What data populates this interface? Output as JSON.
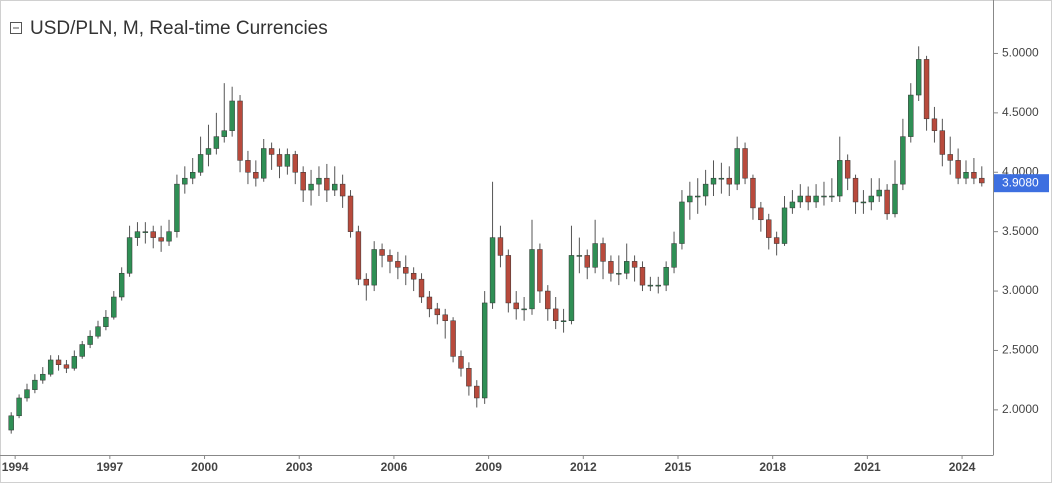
{
  "chart_data": {
    "type": "candlestick",
    "title": "USD/PLN, M, Real-time Currencies",
    "x": [
      1993.75,
      1994,
      1994.25,
      1994.5,
      1994.75,
      1995,
      1995.25,
      1995.5,
      1995.75,
      1996,
      1996.25,
      1996.5,
      1996.75,
      1997,
      1997.25,
      1997.5,
      1997.75,
      1998,
      1998.25,
      1998.5,
      1998.75,
      1999,
      1999.25,
      1999.5,
      1999.75,
      2000,
      2000.25,
      2000.5,
      2000.75,
      2001,
      2001.25,
      2001.5,
      2001.75,
      2002,
      2002.25,
      2002.5,
      2002.75,
      2003,
      2003.25,
      2003.5,
      2003.75,
      2004,
      2004.25,
      2004.5,
      2004.75,
      2005,
      2005.25,
      2005.5,
      2005.75,
      2006,
      2006.25,
      2006.5,
      2006.75,
      2007,
      2007.25,
      2007.5,
      2007.75,
      2008,
      2008.25,
      2008.5,
      2008.75,
      2009,
      2009.25,
      2009.5,
      2009.75,
      2010,
      2010.25,
      2010.5,
      2010.75,
      2011,
      2011.25,
      2011.5,
      2011.75,
      2012,
      2012.25,
      2012.5,
      2012.75,
      2013,
      2013.25,
      2013.5,
      2013.75,
      2014,
      2014.25,
      2014.5,
      2014.75,
      2015,
      2015.25,
      2015.5,
      2015.75,
      2016,
      2016.25,
      2016.5,
      2016.75,
      2017,
      2017.25,
      2017.5,
      2017.75,
      2018,
      2018.25,
      2018.5,
      2018.75,
      2019,
      2019.25,
      2019.5,
      2019.75,
      2020,
      2020.25,
      2020.5,
      2020.75,
      2021,
      2021.25,
      2021.5,
      2021.75,
      2022,
      2022.25,
      2022.5,
      2022.75,
      2023,
      2023.25,
      2023.5,
      2023.75,
      2024,
      2024.25,
      2024.5
    ],
    "open": [
      1.83,
      1.95,
      2.1,
      2.17,
      2.25,
      2.3,
      2.42,
      2.38,
      2.35,
      2.45,
      2.55,
      2.62,
      2.7,
      2.78,
      2.95,
      3.15,
      3.45,
      3.5,
      3.5,
      3.45,
      3.42,
      3.5,
      3.9,
      3.95,
      4.0,
      4.15,
      4.2,
      4.3,
      4.35,
      4.6,
      4.1,
      4.0,
      3.95,
      4.2,
      4.15,
      4.05,
      4.15,
      4.0,
      3.85,
      3.9,
      3.95,
      3.85,
      3.9,
      3.8,
      3.5,
      3.1,
      3.05,
      3.35,
      3.3,
      3.25,
      3.2,
      3.15,
      3.1,
      2.95,
      2.85,
      2.8,
      2.75,
      2.45,
      2.35,
      2.2,
      2.1,
      2.9,
      3.45,
      3.3,
      2.9,
      2.85,
      2.85,
      3.35,
      3.0,
      2.85,
      2.75,
      2.75,
      3.3,
      3.3,
      3.2,
      3.4,
      3.25,
      3.15,
      3.15,
      3.25,
      3.2,
      3.05,
      3.05,
      3.05,
      3.2,
      3.4,
      3.75,
      3.8,
      3.8,
      3.9,
      3.95,
      3.95,
      3.9,
      4.2,
      3.95,
      3.7,
      3.6,
      3.45,
      3.4,
      3.7,
      3.75,
      3.8,
      3.75,
      3.8,
      3.8,
      3.8,
      4.1,
      3.95,
      3.75,
      3.75,
      3.8,
      3.85,
      3.65,
      3.9,
      4.3,
      4.65,
      4.95,
      4.45,
      4.35,
      4.15,
      4.1,
      3.95,
      4.0,
      3.95
    ],
    "high": [
      1.98,
      2.13,
      2.22,
      2.3,
      2.36,
      2.46,
      2.46,
      2.42,
      2.5,
      2.58,
      2.67,
      2.75,
      2.84,
      3.0,
      3.2,
      3.55,
      3.58,
      3.58,
      3.55,
      3.55,
      3.6,
      3.98,
      4.05,
      4.12,
      4.3,
      4.4,
      4.5,
      4.75,
      4.72,
      4.65,
      4.18,
      4.1,
      4.28,
      4.25,
      4.2,
      4.2,
      4.18,
      4.05,
      4.02,
      4.05,
      4.07,
      4.05,
      3.98,
      3.85,
      3.55,
      3.15,
      3.42,
      3.4,
      3.35,
      3.33,
      3.3,
      3.2,
      3.15,
      3.0,
      2.9,
      2.85,
      2.78,
      2.5,
      2.4,
      2.25,
      3.0,
      3.92,
      3.55,
      3.35,
      3.0,
      2.95,
      3.6,
      3.4,
      3.05,
      2.95,
      2.85,
      3.55,
      3.45,
      3.35,
      3.6,
      3.45,
      3.3,
      3.3,
      3.4,
      3.3,
      3.25,
      3.12,
      3.12,
      3.25,
      3.5,
      3.85,
      3.92,
      3.95,
      4.02,
      4.1,
      4.08,
      4.05,
      4.3,
      4.25,
      3.98,
      3.75,
      3.65,
      3.5,
      3.8,
      3.85,
      3.9,
      3.88,
      3.9,
      3.92,
      3.95,
      4.3,
      4.15,
      3.98,
      3.85,
      3.95,
      3.95,
      3.9,
      4.1,
      4.45,
      4.75,
      5.06,
      4.98,
      4.55,
      4.45,
      4.3,
      4.2,
      4.1,
      4.12,
      4.05
    ],
    "low": [
      1.8,
      1.93,
      2.07,
      2.14,
      2.22,
      2.28,
      2.33,
      2.31,
      2.33,
      2.43,
      2.52,
      2.6,
      2.67,
      2.76,
      2.92,
      3.12,
      3.38,
      3.4,
      3.36,
      3.33,
      3.38,
      3.45,
      3.82,
      3.9,
      3.97,
      4.05,
      4.15,
      4.25,
      4.3,
      4.0,
      3.9,
      3.88,
      3.92,
      4.02,
      3.95,
      3.98,
      3.9,
      3.75,
      3.72,
      3.8,
      3.75,
      3.8,
      3.7,
      3.45,
      3.05,
      2.92,
      3.0,
      3.2,
      3.15,
      3.1,
      3.05,
      3.0,
      2.9,
      2.78,
      2.72,
      2.6,
      2.4,
      2.28,
      2.12,
      2.02,
      2.05,
      2.85,
      3.2,
      2.82,
      2.76,
      2.75,
      2.8,
      2.9,
      2.75,
      2.68,
      2.65,
      2.72,
      3.15,
      3.1,
      3.15,
      3.1,
      3.08,
      3.05,
      3.1,
      3.08,
      3.0,
      3.0,
      2.98,
      3.0,
      3.15,
      3.35,
      3.6,
      3.65,
      3.72,
      3.8,
      3.82,
      3.8,
      3.85,
      3.9,
      3.6,
      3.5,
      3.35,
      3.3,
      3.38,
      3.65,
      3.7,
      3.68,
      3.7,
      3.72,
      3.75,
      3.75,
      3.85,
      3.65,
      3.65,
      3.68,
      3.75,
      3.6,
      3.62,
      3.85,
      4.25,
      4.6,
      4.35,
      4.25,
      4.05,
      3.98,
      3.9,
      3.9,
      3.9,
      3.88
    ],
    "close": [
      1.95,
      2.1,
      2.17,
      2.25,
      2.3,
      2.42,
      2.38,
      2.35,
      2.45,
      2.55,
      2.62,
      2.7,
      2.78,
      2.95,
      3.15,
      3.45,
      3.5,
      3.5,
      3.45,
      3.42,
      3.5,
      3.9,
      3.95,
      4.0,
      4.15,
      4.2,
      4.3,
      4.35,
      4.6,
      4.1,
      4.0,
      3.95,
      4.2,
      4.15,
      4.05,
      4.15,
      4.0,
      3.85,
      3.9,
      3.95,
      3.85,
      3.9,
      3.8,
      3.5,
      3.1,
      3.05,
      3.35,
      3.3,
      3.25,
      3.2,
      3.15,
      3.1,
      2.95,
      2.85,
      2.8,
      2.75,
      2.45,
      2.35,
      2.2,
      2.1,
      2.9,
      3.45,
      3.3,
      2.9,
      2.85,
      2.85,
      3.35,
      3.0,
      2.85,
      2.75,
      2.75,
      3.3,
      3.3,
      3.2,
      3.4,
      3.25,
      3.15,
      3.15,
      3.25,
      3.2,
      3.05,
      3.05,
      3.05,
      3.2,
      3.4,
      3.75,
      3.8,
      3.8,
      3.9,
      3.95,
      3.95,
      3.9,
      4.2,
      3.95,
      3.7,
      3.6,
      3.45,
      3.4,
      3.7,
      3.75,
      3.8,
      3.75,
      3.8,
      3.8,
      3.8,
      4.1,
      3.95,
      3.75,
      3.75,
      3.8,
      3.85,
      3.65,
      3.9,
      4.3,
      4.65,
      4.95,
      4.45,
      4.35,
      4.15,
      4.1,
      3.95,
      4.0,
      3.95,
      3.91
    ],
    "up_color": "#2f8f55",
    "down_color": "#b84a3c",
    "wick_color": "#555555",
    "xlim": [
      1993.52,
      2024.98
    ],
    "ylim": [
      1.62,
      5.45
    ],
    "xticks": [
      1994,
      1997,
      2000,
      2003,
      2006,
      2009,
      2012,
      2015,
      2018,
      2021,
      2024
    ],
    "yticks": [
      {
        "value": 2,
        "label": "2.0000"
      },
      {
        "value": 2.5,
        "label": "2.5000"
      },
      {
        "value": 3,
        "label": "3.0000"
      },
      {
        "value": 3.5,
        "label": "3.5000"
      },
      {
        "value": 4,
        "label": "4.0000"
      },
      {
        "value": 4.5,
        "label": "4.5000"
      },
      {
        "value": 5,
        "label": "5.0000"
      }
    ],
    "last_value": {
      "value": 3.908,
      "label": "3.9080"
    },
    "last_color": "#3d6fe0"
  }
}
